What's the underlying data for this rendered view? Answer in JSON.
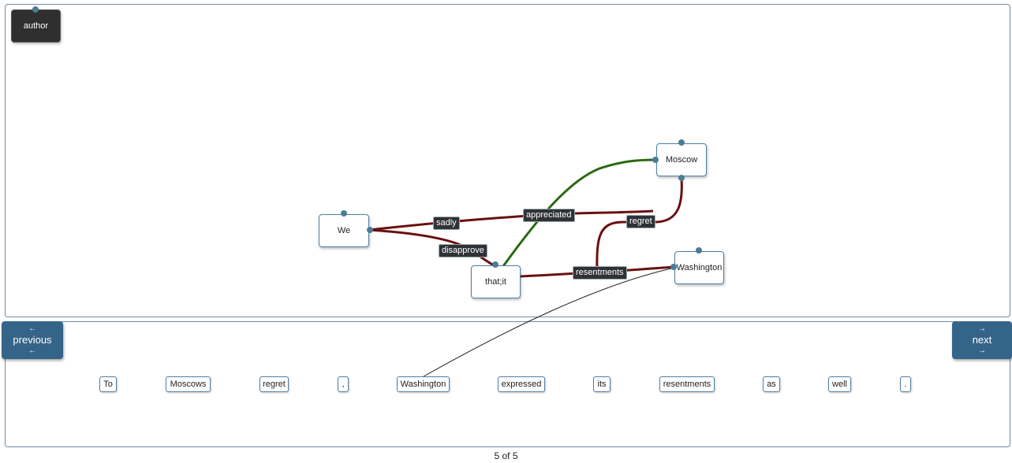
{
  "graph": {
    "nodes": {
      "author": "author",
      "we": "We",
      "thatit": "that;it",
      "moscow": "Moscow",
      "washington": "Washington"
    },
    "edge_labels": {
      "sadly": "sadly",
      "appreciated": "appreciated",
      "disapprove": "disapprove",
      "regret": "regret",
      "resentments": "resentments"
    },
    "colors": {
      "negative_edge": "#6b1010",
      "positive_edge": "#2a6a12",
      "node_border": "#4f7ea1",
      "button": "#356489"
    }
  },
  "nav": {
    "previous_label": "previous",
    "next_label": "next",
    "left_arrow": "←",
    "right_arrow": "→"
  },
  "sentence": {
    "tokens": [
      "To",
      "Moscows",
      "regret",
      ",",
      "Washington",
      "expressed",
      "its",
      "resentments",
      "as",
      "well",
      "."
    ]
  },
  "pager": {
    "text": "5 of 5"
  }
}
